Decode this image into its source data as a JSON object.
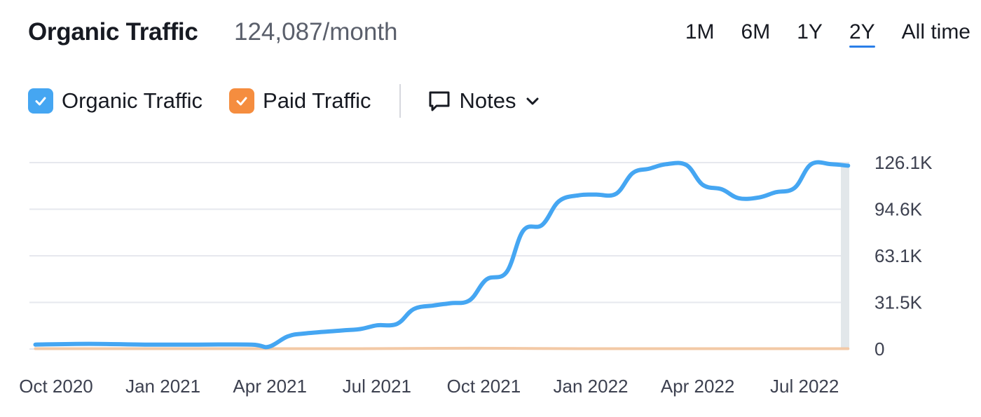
{
  "header": {
    "title": "Organic Traffic",
    "subtitle": "124,087/month",
    "ranges": [
      {
        "label": "1M",
        "active": false
      },
      {
        "label": "6M",
        "active": false
      },
      {
        "label": "1Y",
        "active": false
      },
      {
        "label": "2Y",
        "active": true
      },
      {
        "label": "All time",
        "active": false
      }
    ]
  },
  "legend": {
    "items": [
      {
        "label": "Organic Traffic",
        "color": "#45a6f2",
        "checked": true
      },
      {
        "label": "Paid Traffic",
        "color": "#f58d3f",
        "checked": true
      }
    ],
    "notes_label": "Notes",
    "notes_icon": "speech-bubble-icon",
    "dropdown_icon": "chevron-down-icon"
  },
  "chart_data": {
    "type": "line",
    "x_ticks": [
      "Oct 2020",
      "Jan 2021",
      "Apr 2021",
      "Jul 2021",
      "Oct 2021",
      "Jan 2022",
      "Apr 2022",
      "Jul 2022"
    ],
    "y_ticks": [
      "0",
      "31.5K",
      "63.1K",
      "94.6K",
      "126.1K"
    ],
    "ylim": [
      0,
      126100
    ],
    "grid": true,
    "y_axis_position": "right",
    "series": [
      {
        "name": "Organic Traffic",
        "color": "#45a6f2",
        "x": [
          "2020-10-01",
          "2020-11-15",
          "2021-01-01",
          "2021-02-15",
          "2021-04-01",
          "2021-04-15",
          "2021-05-01",
          "2021-05-15",
          "2021-06-15",
          "2021-07-01",
          "2021-07-15",
          "2021-08-01",
          "2021-08-15",
          "2021-09-01",
          "2021-09-15",
          "2021-10-01",
          "2021-10-15",
          "2021-11-01",
          "2021-11-15",
          "2021-12-01",
          "2021-12-15",
          "2022-01-01",
          "2022-01-15",
          "2022-02-01",
          "2022-02-15",
          "2022-03-01",
          "2022-03-15",
          "2022-04-01",
          "2022-04-15",
          "2022-05-01",
          "2022-05-15",
          "2022-06-01",
          "2022-06-15",
          "2022-07-01",
          "2022-07-15",
          "2022-08-01",
          "2022-08-15"
        ],
        "y": [
          3000,
          3500,
          3000,
          3000,
          3000,
          1500,
          8500,
          10500,
          12500,
          13500,
          16000,
          17000,
          27000,
          29500,
          31000,
          33000,
          47000,
          52000,
          80000,
          84000,
          100000,
          104000,
          104500,
          105000,
          119000,
          122000,
          125000,
          124500,
          111000,
          108000,
          102000,
          102500,
          106000,
          109000,
          125000,
          125000,
          124000
        ]
      },
      {
        "name": "Paid Traffic",
        "color": "#f58d3f",
        "x": [
          "2020-10-01",
          "2021-07-01",
          "2021-10-01",
          "2022-01-01",
          "2022-08-15"
        ],
        "y": [
          0,
          0,
          300,
          0,
          0
        ]
      }
    ]
  }
}
